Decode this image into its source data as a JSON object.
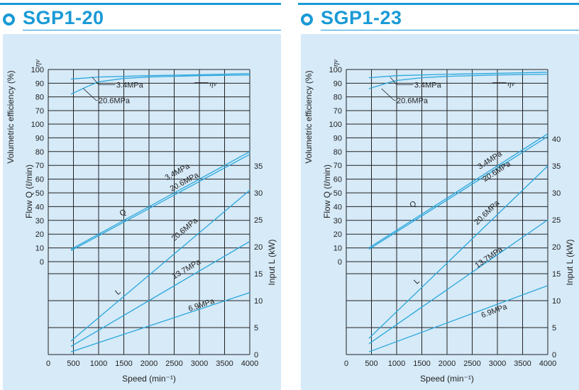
{
  "panels": [
    {
      "title": "SGP1-20",
      "chart_data": {
        "type": "line",
        "title": "SGP1-20",
        "xlabel": "Speed (min⁻¹)",
        "ylabel_eff": "Volumetric efficiency (%)",
        "ylabel_flow": "Flow Q (ℓ/min)",
        "ylabel_power": "Input L (kW)",
        "eff_symbol": "ηv",
        "x_ticks": [
          "0",
          "500",
          "1000",
          "1500",
          "2000",
          "2500",
          "3000",
          "3500",
          "4000"
        ],
        "eff_ticks": [
          "70",
          "80",
          "90",
          "100"
        ],
        "flow_ticks": [
          "0",
          "10",
          "20",
          "30",
          "40",
          "50",
          "60",
          "70",
          "80",
          "90",
          "100"
        ],
        "power_ticks": [
          "0",
          "5",
          "10",
          "15",
          "20",
          "25",
          "30",
          "35"
        ],
        "xlim": [
          0,
          4000
        ],
        "efficiency": [
          {
            "name": "3.4MPa",
            "x": [
              450,
              1000,
              2000,
              3000,
              4000
            ],
            "y": [
              93,
              94.5,
              95.5,
              96.2,
              97
            ]
          },
          {
            "name": "20.6MPa",
            "x": [
              450,
              800,
              1000,
              1500,
              2000,
              3000,
              4000
            ],
            "y": [
              82,
              88,
              91,
              93.5,
              94.5,
              95.5,
              96
            ]
          }
        ],
        "flow": [
          {
            "name": "3.4MPa",
            "x": [
              450,
              4000
            ],
            "y": [
              9,
              80
            ]
          },
          {
            "name": "20.6MPa",
            "x": [
              450,
              4000
            ],
            "y": [
              8,
              78
            ]
          }
        ],
        "power": [
          {
            "name": "20.6MPa",
            "x": [
              450,
              4000
            ],
            "y": [
              2.5,
              30.5
            ]
          },
          {
            "name": "13.7MPa",
            "x": [
              450,
              4000
            ],
            "y": [
              1.5,
              21
            ]
          },
          {
            "name": "6.9MPa",
            "x": [
              450,
              4000
            ],
            "y": [
              0.5,
              11.5
            ]
          }
        ],
        "labels": {
          "eff_34": "3.4MPa",
          "eff_206": "20.6MPa",
          "eta": "ηv",
          "q_34": "3.4MPa",
          "q_206": "20.6MPa",
          "q": "Q",
          "l": "L",
          "l_206": "20.6MPa",
          "l_137": "13.7MPa",
          "l_69": "6.9MPa"
        }
      }
    },
    {
      "title": "SGP1-23",
      "chart_data": {
        "type": "line",
        "title": "SGP1-23",
        "xlabel": "Speed (min⁻¹)",
        "ylabel_eff": "Volumetric efficiency (%)",
        "ylabel_flow": "Flow Q (ℓ/min)",
        "ylabel_power": "Input L (kW)",
        "eff_symbol": "ηv",
        "x_ticks": [
          "0",
          "500",
          "1000",
          "1500",
          "2000",
          "2500",
          "3000",
          "3500",
          "4000"
        ],
        "eff_ticks": [
          "70",
          "80",
          "90",
          "100"
        ],
        "flow_ticks": [
          "0",
          "10",
          "20",
          "30",
          "40",
          "50",
          "60",
          "70",
          "80",
          "90",
          "100"
        ],
        "power_ticks": [
          "0",
          "5",
          "10",
          "15",
          "20",
          "25",
          "30",
          "35",
          "40"
        ],
        "xlim": [
          0,
          4000
        ],
        "efficiency": [
          {
            "name": "3.4MPa",
            "x": [
              450,
              1000,
              2000,
              3000,
              4000
            ],
            "y": [
              94,
              95.5,
              96.5,
              97.2,
              98
            ]
          },
          {
            "name": "20.6MPa",
            "x": [
              450,
              800,
              1000,
              1500,
              2000,
              3000,
              4000
            ],
            "y": [
              86,
              90,
              92,
              94,
              95,
              96,
              96.5
            ]
          }
        ],
        "flow": [
          {
            "name": "3.4MPa",
            "x": [
              450,
              4000
            ],
            "y": [
              10,
              93
            ]
          },
          {
            "name": "20.6MPa",
            "x": [
              450,
              4000
            ],
            "y": [
              9,
              91
            ]
          }
        ],
        "power": [
          {
            "name": "20.6MPa",
            "x": [
              450,
              4000
            ],
            "y": [
              3,
              35
            ]
          },
          {
            "name": "13.7MPa",
            "x": [
              450,
              4000
            ],
            "y": [
              2,
              25
            ]
          },
          {
            "name": "6.9MPa",
            "x": [
              450,
              4000
            ],
            "y": [
              0.5,
              12.8
            ]
          }
        ],
        "labels": {
          "eff_34": "3.4MPa",
          "eff_206": "20.6MPa",
          "eta": "ηv",
          "q_34": "3.4MPa",
          "q_206": "20.6MPa",
          "q": "Q",
          "l": "L",
          "l_206": "20.6MPa",
          "l_137": "13.7MPa",
          "l_69": "6.9MPa"
        }
      }
    }
  ]
}
